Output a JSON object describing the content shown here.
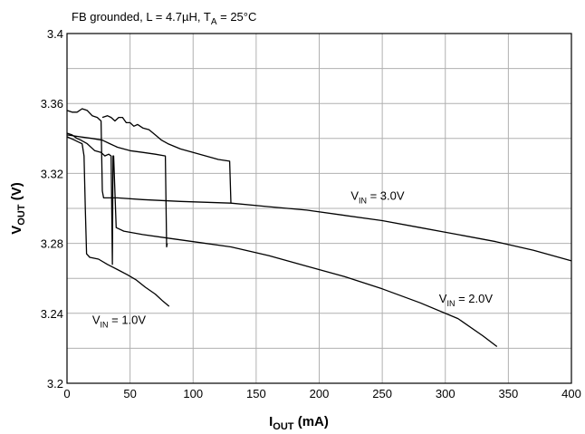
{
  "chart_data": {
    "type": "line",
    "title": "FB grounded,  L = 4.7µH,  T",
    "title_sub": "A",
    "title_tail": " = 25°C",
    "xlabel_main": "I",
    "xlabel_sub": "OUT",
    "xlabel_tail": " (mA)",
    "ylabel_main": "V",
    "ylabel_sub": "OUT",
    "ylabel_tail": " (V)",
    "xlim": [
      0,
      400
    ],
    "ylim": [
      3.2,
      3.4
    ],
    "xticks": [
      0,
      50,
      100,
      150,
      200,
      250,
      300,
      350,
      400
    ],
    "yticks": [
      3.2,
      3.24,
      3.28,
      3.32,
      3.36,
      3.4
    ],
    "ytick_labels": [
      "3.2",
      "3.24",
      "3.28",
      "3.32",
      "3.36",
      "3.4"
    ],
    "grid": true,
    "series": [
      {
        "label_main": "V",
        "label_sub": "IN",
        "label_tail": " = 1.0V",
        "points": [
          [
            0,
            3.341
          ],
          [
            3,
            3.34
          ],
          [
            6,
            3.339
          ],
          [
            9,
            3.338
          ],
          [
            12,
            3.337
          ],
          [
            13.5,
            3.33
          ],
          [
            14.5,
            3.3
          ],
          [
            15.5,
            3.274
          ],
          [
            18,
            3.272
          ],
          [
            25,
            3.271
          ],
          [
            32,
            3.268
          ],
          [
            40,
            3.265
          ],
          [
            48,
            3.262
          ],
          [
            55,
            3.259
          ],
          [
            62,
            3.255
          ],
          [
            70,
            3.251
          ],
          [
            76,
            3.247
          ],
          [
            81,
            3.244
          ]
        ]
      },
      {
        "label_main": "V",
        "label_sub": "IN",
        "label_tail": " = 2.0V",
        "points": [
          [
            0,
            3.343
          ],
          [
            4,
            3.342
          ],
          [
            8,
            3.34
          ],
          [
            11,
            3.339
          ],
          [
            16,
            3.337
          ],
          [
            22,
            3.333
          ],
          [
            27,
            3.332
          ],
          [
            30,
            3.33
          ],
          [
            33,
            3.331
          ],
          [
            35,
            3.33
          ],
          [
            35.5,
            3.3
          ],
          [
            36,
            3.268
          ],
          [
            36.5,
            3.33
          ],
          [
            37,
            3.33
          ],
          [
            39,
            3.289
          ],
          [
            45,
            3.287
          ],
          [
            60,
            3.285
          ],
          [
            80,
            3.283
          ],
          [
            100,
            3.281
          ],
          [
            130,
            3.278
          ],
          [
            160,
            3.273
          ],
          [
            190,
            3.267
          ],
          [
            220,
            3.261
          ],
          [
            250,
            3.254
          ],
          [
            280,
            3.246
          ],
          [
            310,
            3.237
          ],
          [
            330,
            3.227
          ],
          [
            341,
            3.221
          ]
        ]
      },
      {
        "label_main": "V",
        "label_sub": "IN",
        "label_tail": " = 3.0V",
        "points": [
          [
            0,
            3.356
          ],
          [
            4,
            3.355
          ],
          [
            8,
            3.355
          ],
          [
            12,
            3.357
          ],
          [
            16,
            3.356
          ],
          [
            20,
            3.353
          ],
          [
            24,
            3.352
          ],
          [
            27,
            3.35
          ],
          [
            28,
            3.31
          ],
          [
            29,
            3.306
          ],
          [
            33,
            3.306
          ],
          [
            40,
            3.306
          ],
          [
            60,
            3.305
          ],
          [
            90,
            3.304
          ],
          [
            130,
            3.303
          ],
          [
            160,
            3.301
          ],
          [
            190,
            3.299
          ],
          [
            220,
            3.296
          ],
          [
            250,
            3.293
          ],
          [
            280,
            3.289
          ],
          [
            310,
            3.285
          ],
          [
            340,
            3.281
          ],
          [
            370,
            3.276
          ],
          [
            400,
            3.27
          ]
        ]
      },
      {
        "label_main": "",
        "label_sub": "",
        "label_tail": "",
        "points": [
          [
            0,
            3.342
          ],
          [
            10,
            3.341
          ],
          [
            20,
            3.34
          ],
          [
            28,
            3.339
          ],
          [
            34,
            3.337
          ],
          [
            40,
            3.335
          ],
          [
            50,
            3.333
          ],
          [
            60,
            3.332
          ],
          [
            70,
            3.331
          ],
          [
            78,
            3.33
          ],
          [
            79,
            3.278
          ],
          [
            79.5,
            3.28
          ]
        ]
      },
      {
        "label_main": "",
        "label_sub": "",
        "label_tail": "",
        "points": [
          [
            28,
            3.352
          ],
          [
            32,
            3.353
          ],
          [
            35,
            3.352
          ],
          [
            38,
            3.35
          ],
          [
            41,
            3.352
          ],
          [
            44,
            3.352
          ],
          [
            47,
            3.349
          ],
          [
            50,
            3.349
          ],
          [
            53,
            3.347
          ],
          [
            56,
            3.348
          ],
          [
            60,
            3.346
          ],
          [
            65,
            3.345
          ],
          [
            70,
            3.342
          ],
          [
            75,
            3.339
          ],
          [
            80,
            3.337
          ],
          [
            90,
            3.334
          ],
          [
            100,
            3.332
          ],
          [
            110,
            3.33
          ],
          [
            120,
            3.328
          ],
          [
            129,
            3.327
          ],
          [
            130,
            3.303
          ]
        ]
      }
    ],
    "annotations": [
      {
        "main": "V",
        "sub": "IN",
        "tail": " = 3.0V",
        "at": [
          225,
          3.305
        ]
      },
      {
        "main": "V",
        "sub": "IN",
        "tail": " = 2.0V",
        "at": [
          295,
          3.246
        ]
      },
      {
        "main": "V",
        "sub": "IN",
        "tail": " = 1.0V",
        "at": [
          20,
          3.234
        ]
      }
    ]
  }
}
